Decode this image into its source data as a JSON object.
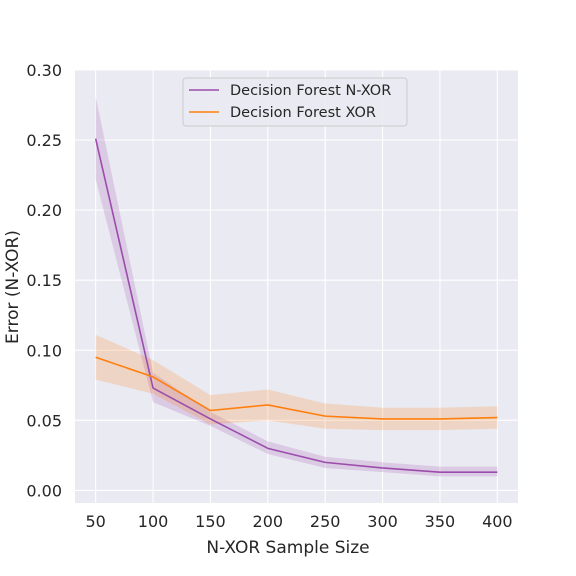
{
  "chart_data": {
    "type": "line",
    "title": "",
    "xlabel": "N-XOR Sample Size",
    "ylabel": "Error (N-XOR)",
    "xlim": [
      32,
      418
    ],
    "ylim": [
      -0.009,
      0.3
    ],
    "xticks": [
      50,
      100,
      150,
      200,
      250,
      300,
      350,
      400
    ],
    "yticks": [
      0.0,
      0.05,
      0.1,
      0.15,
      0.2,
      0.25,
      0.3
    ],
    "ytick_labels": [
      "0.00",
      "0.05",
      "0.10",
      "0.15",
      "0.20",
      "0.25",
      "0.30"
    ],
    "grid": true,
    "legend_position": "top-center",
    "background": "#eaeaf2",
    "x": [
      50,
      100,
      150,
      200,
      250,
      300,
      350,
      400
    ],
    "series": [
      {
        "name": "Decision Forest N-XOR",
        "color": "#9b4dab",
        "values": [
          0.251,
          0.073,
          0.051,
          0.03,
          0.02,
          0.016,
          0.013,
          0.013
        ],
        "lower": [
          0.222,
          0.063,
          0.046,
          0.026,
          0.016,
          0.013,
          0.01,
          0.01
        ],
        "upper": [
          0.281,
          0.084,
          0.056,
          0.035,
          0.024,
          0.02,
          0.017,
          0.017
        ]
      },
      {
        "name": "Decision Forest XOR",
        "color": "#ff7f0e",
        "values": [
          0.095,
          0.081,
          0.057,
          0.061,
          0.053,
          0.051,
          0.051,
          0.052
        ],
        "lower": [
          0.079,
          0.069,
          0.047,
          0.05,
          0.044,
          0.043,
          0.043,
          0.044
        ],
        "upper": [
          0.111,
          0.093,
          0.068,
          0.072,
          0.062,
          0.059,
          0.059,
          0.06
        ]
      }
    ]
  }
}
